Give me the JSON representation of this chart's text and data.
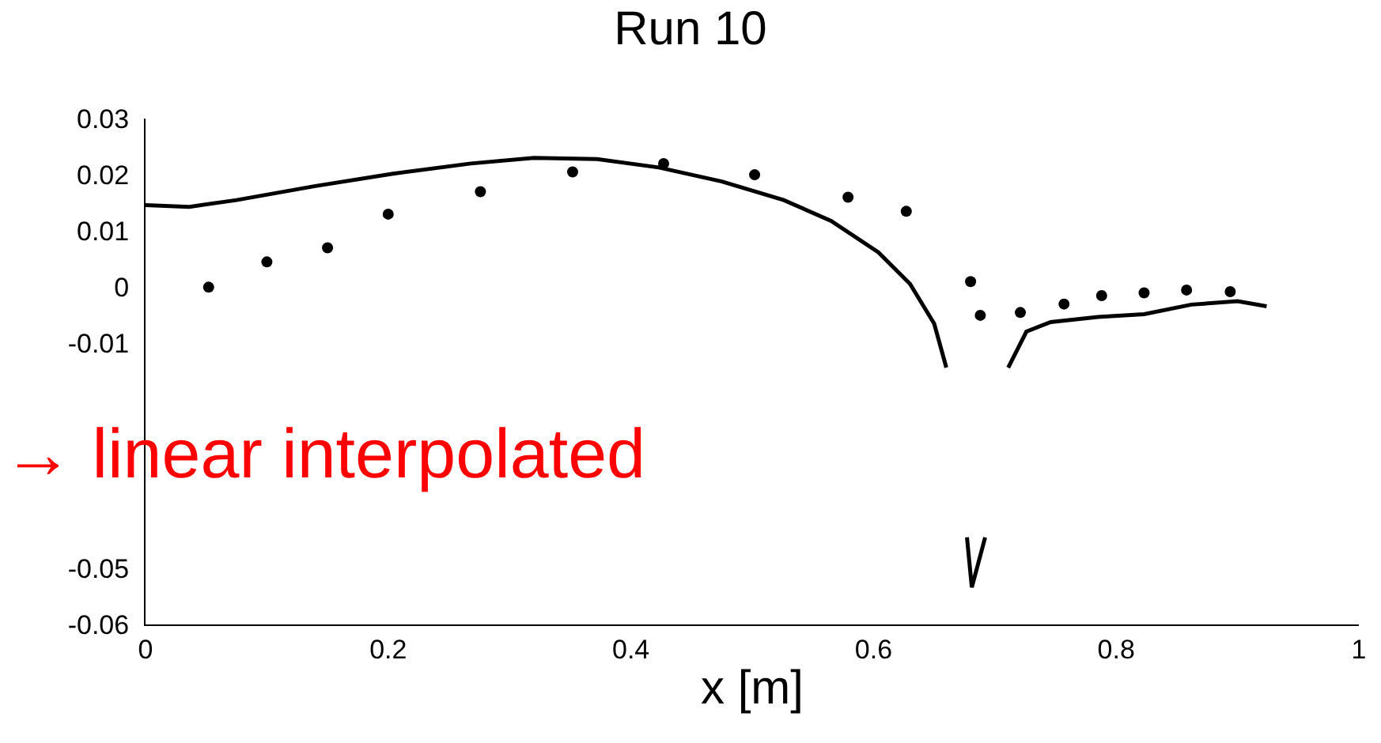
{
  "chart_data": {
    "type": "line",
    "title": "Run 10",
    "xlabel": "x [m]",
    "xlim": [
      0,
      1
    ],
    "xticks": [
      0,
      0.2,
      0.4,
      0.6,
      0.8,
      1
    ],
    "ylim": [
      -0.06,
      0.03
    ],
    "yticks": [
      0.03,
      0.02,
      0.01,
      0,
      -0.01,
      -0.05,
      -0.06
    ],
    "grid": false,
    "annotations": [
      "→ linear interpolated"
    ],
    "series": [
      {
        "color": "#000000",
        "line_style": "solid",
        "marker": "none",
        "x": [
          0,
          0.036,
          0.075,
          0.14,
          0.204,
          0.268,
          0.32,
          0.372,
          0.423,
          0.475,
          0.526,
          0.565,
          0.604,
          0.63,
          0.65,
          0.66,
          0.668,
          0.677,
          0.681,
          0.692,
          0.7,
          0.711,
          0.726,
          0.746,
          0.785,
          0.823,
          0.862,
          0.9,
          0.924
        ],
        "values": [
          0.0146,
          0.0143,
          0.0155,
          0.018,
          0.0202,
          0.022,
          0.023,
          0.0228,
          0.0213,
          0.0188,
          0.0155,
          0.0118,
          0.0062,
          0.0006,
          -0.0065,
          -0.0143,
          null,
          -0.0445,
          -0.0534,
          -0.0445,
          null,
          -0.0143,
          -0.0079,
          -0.0062,
          -0.0053,
          -0.0048,
          -0.0031,
          -0.0025,
          -0.0034
        ]
      },
      {
        "type": "scatter",
        "color": "#000000",
        "marker": "circle",
        "x": [
          0.052,
          0.1,
          0.15,
          0.2,
          0.276,
          0.352,
          0.427,
          0.502,
          0.579,
          0.627,
          0.68,
          0.688,
          0.721,
          0.757,
          0.788,
          0.823,
          0.858,
          0.894
        ],
        "values": [
          0,
          0.0045,
          0.007,
          0.013,
          0.017,
          0.0205,
          0.022,
          0.02,
          0.016,
          0.0135,
          0.001,
          -0.005,
          -0.0045,
          -0.003,
          -0.0015,
          -0.001,
          -0.0005,
          -0.0008
        ]
      }
    ]
  }
}
